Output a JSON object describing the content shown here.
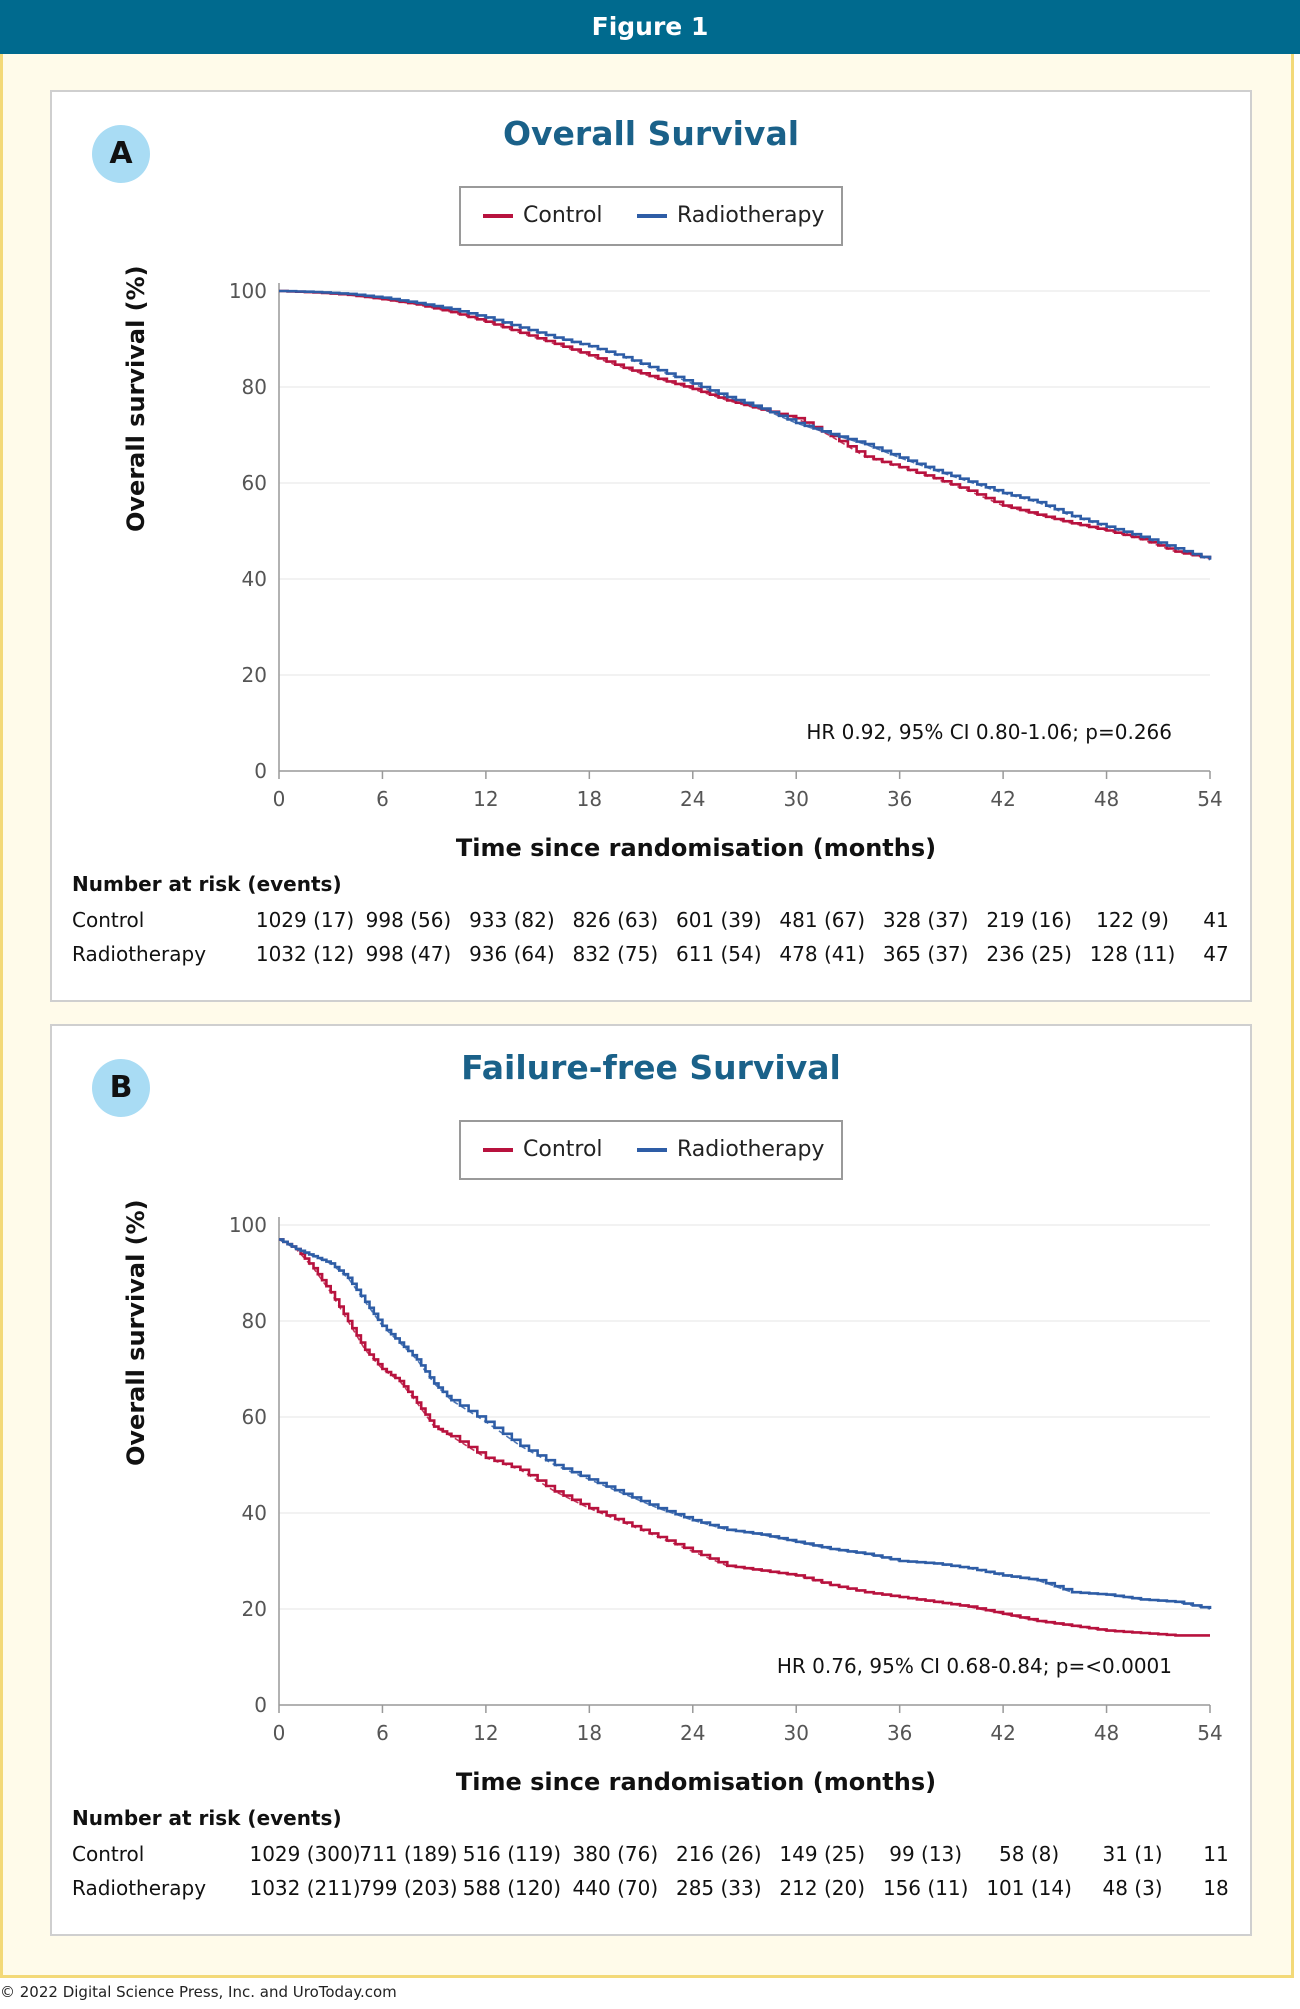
{
  "header": {
    "title": "Figure 1"
  },
  "footer": {
    "copyright": "© 2022 Digital Science Press, Inc. and UroToday.com"
  },
  "colors": {
    "control": "#b8123e",
    "radiotherapy": "#2e5da6",
    "header_bg": "#006a8e",
    "title": "#1a6189",
    "letter_bg": "#a9dcf4"
  },
  "risk_labels": {
    "title": "Number at risk (events)",
    "control": "Control",
    "radiotherapy": "Radiotherapy"
  },
  "panels": [
    {
      "letter": "A",
      "title": "Overall Survival",
      "legend": {
        "control": "Control",
        "radiotherapy": "Radiotherapy"
      },
      "hr_text": "HR 0.92, 95% CI 0.80-1.06; p=0.266",
      "risk": {
        "control": [
          "1029 (17)",
          "998 (56)",
          "933 (82)",
          "826 (63)",
          "601 (39)",
          "481 (67)",
          "328 (37)",
          "219 (16)",
          "122 (9)",
          "41"
        ],
        "radiotherapy": [
          "1032 (12)",
          "998 (47)",
          "936 (64)",
          "832 (75)",
          "611 (54)",
          "478 (41)",
          "365 (37)",
          "236 (25)",
          "128 (11)",
          "47"
        ]
      }
    },
    {
      "letter": "B",
      "title": "Failure-free Survival",
      "legend": {
        "control": "Control",
        "radiotherapy": "Radiotherapy"
      },
      "hr_text": "HR 0.76, 95% CI 0.68-0.84; p=<0.0001",
      "risk": {
        "control": [
          "1029 (300)",
          "711 (189)",
          "516 (119)",
          "380 (76)",
          "216 (26)",
          "149 (25)",
          "99 (13)",
          "58 (8)",
          "31 (1)",
          "11"
        ],
        "radiotherapy": [
          "1032 (211)",
          "799 (203)",
          "588 (120)",
          "440 (70)",
          "285 (33)",
          "212 (20)",
          "156 (11)",
          "101 (14)",
          "48 (3)",
          "18"
        ]
      }
    }
  ],
  "chart_data": [
    {
      "type": "line",
      "title": "Overall Survival",
      "xlabel": "Time since randomisation (months)",
      "ylabel": "Overall survival (%)",
      "xlim": [
        0,
        54
      ],
      "ylim": [
        0,
        100
      ],
      "xticks": [
        0,
        6,
        12,
        18,
        24,
        30,
        36,
        42,
        48,
        54
      ],
      "yticks": [
        0,
        20,
        40,
        60,
        80,
        100
      ],
      "grid": "horizontal",
      "legend": "top-center",
      "series": [
        {
          "name": "Control",
          "style": "step",
          "x": [
            0,
            2,
            4,
            6,
            8,
            10,
            12,
            14,
            16,
            18,
            20,
            22,
            24,
            26,
            28,
            30,
            32,
            34,
            36,
            38,
            40,
            42,
            44,
            46,
            48,
            50,
            52,
            54
          ],
          "y": [
            100,
            99.7,
            99.2,
            98.3,
            97.2,
            95.6,
            93.6,
            91.3,
            89.0,
            86.6,
            84.0,
            81.7,
            79.6,
            77.2,
            75.3,
            73.5,
            69.8,
            65.5,
            63.3,
            61.0,
            58.4,
            55.3,
            53.4,
            51.6,
            50.1,
            48.3,
            45.7,
            44.2
          ]
        },
        {
          "name": "Radiotherapy",
          "style": "step",
          "x": [
            0,
            2,
            4,
            6,
            8,
            10,
            12,
            14,
            16,
            18,
            20,
            22,
            24,
            26,
            28,
            30,
            32,
            34,
            36,
            38,
            40,
            42,
            44,
            46,
            48,
            50,
            52,
            54
          ],
          "y": [
            100,
            99.8,
            99.4,
            98.6,
            97.5,
            96.2,
            94.5,
            92.4,
            90.3,
            88.5,
            86.2,
            83.5,
            80.7,
            77.9,
            75.5,
            72.5,
            70.2,
            68.1,
            65.3,
            62.7,
            60.3,
            57.9,
            56.0,
            53.1,
            50.9,
            48.8,
            46.4,
            44.0
          ]
        }
      ]
    },
    {
      "type": "line",
      "title": "Failure-free Survival",
      "xlabel": "Time since randomisation (months)",
      "ylabel": "Overall survival (%)",
      "xlim": [
        0,
        54
      ],
      "ylim": [
        0,
        100
      ],
      "xticks": [
        0,
        6,
        12,
        18,
        24,
        30,
        36,
        42,
        48,
        54
      ],
      "yticks": [
        0,
        20,
        40,
        60,
        80,
        100
      ],
      "grid": "horizontal",
      "legend": "top-center",
      "series": [
        {
          "name": "Control",
          "style": "step",
          "x": [
            0,
            1,
            2,
            3,
            4,
            5,
            6,
            7,
            8,
            9,
            10,
            12,
            14,
            16,
            18,
            20,
            22,
            24,
            26,
            28,
            30,
            32,
            34,
            36,
            38,
            40,
            42,
            44,
            46,
            48,
            50,
            52,
            54
          ],
          "y": [
            97,
            95,
            91,
            86,
            80,
            74,
            70,
            67.5,
            63,
            58,
            56,
            51.5,
            49,
            44.5,
            41,
            38,
            35,
            32,
            29,
            28,
            27,
            25,
            23.5,
            22.5,
            21.5,
            20.5,
            19,
            17.5,
            16.5,
            15.5,
            15,
            14.5,
            14.5
          ]
        },
        {
          "name": "Radiotherapy",
          "style": "step",
          "x": [
            0,
            1,
            2,
            3,
            4,
            5,
            6,
            7,
            8,
            9,
            10,
            12,
            14,
            16,
            18,
            20,
            22,
            24,
            26,
            28,
            30,
            32,
            34,
            36,
            38,
            40,
            42,
            44,
            46,
            48,
            50,
            52,
            54
          ],
          "y": [
            97,
            95,
            93.5,
            92,
            89,
            84,
            79,
            75.5,
            72,
            67,
            63.5,
            59,
            54,
            50,
            47,
            44,
            41,
            38.5,
            36.5,
            35.5,
            34,
            32.5,
            31.5,
            30,
            29.5,
            28.5,
            27,
            26,
            23.5,
            23,
            22,
            21.5,
            20
          ]
        }
      ]
    }
  ]
}
